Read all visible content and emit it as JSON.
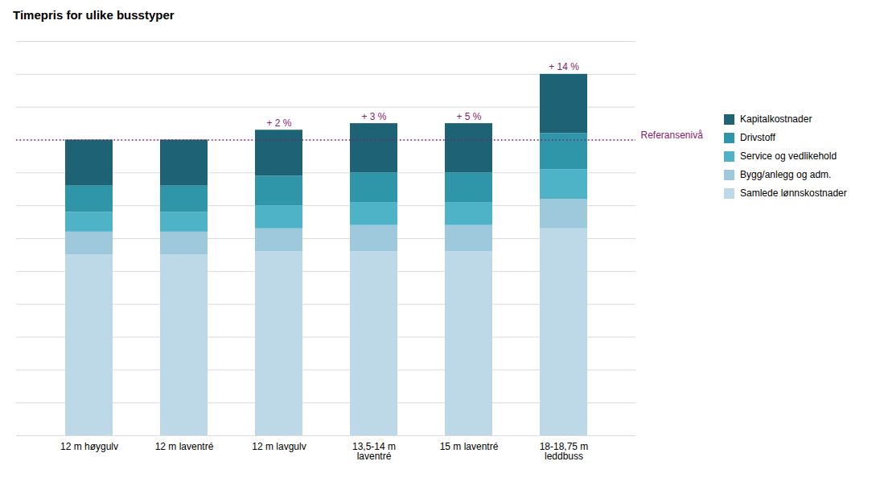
{
  "chart_data": {
    "type": "bar",
    "stacked": true,
    "title": "Timepris for ulike busstyper",
    "categories": [
      "12 m høygulv",
      "12 m laventré",
      "12 m lavgulv",
      "13,5-14 m\nlaventré",
      "15 m laventré",
      "18-18,75 m\nleddbuss"
    ],
    "series": [
      {
        "name": "Samlede lønnskostnader",
        "color": "#bdd9e8",
        "values": [
          55,
          55,
          56,
          56,
          56,
          63
        ]
      },
      {
        "name": "Bygg/anlegg og adm.",
        "color": "#9ec8db",
        "values": [
          7,
          7,
          7,
          8,
          8,
          9
        ]
      },
      {
        "name": "Service og vedlikehold",
        "color": "#4fb3c8",
        "values": [
          6,
          6,
          7,
          7,
          7,
          9
        ]
      },
      {
        "name": "Drivstoff",
        "color": "#2e96a8",
        "values": [
          8,
          8,
          9,
          9,
          9,
          11
        ]
      },
      {
        "name": "Kapitalkostnader",
        "color": "#1d6375",
        "values": [
          14,
          14,
          14,
          15,
          15,
          18
        ]
      }
    ],
    "ylim": [
      0,
      120
    ],
    "yticks": [
      0,
      10,
      20,
      30,
      40,
      50,
      60,
      70,
      80,
      90,
      100,
      110,
      120
    ],
    "grid": true,
    "tick_labels": "x",
    "legend": "right",
    "reference_line": {
      "value": 90,
      "label": "Referansenivå",
      "color": "#8b1a6b",
      "line_style": "dotted"
    },
    "annotations": [
      {
        "category": "12 m lavgulv",
        "text": "+ 2 %",
        "color": "#8b1a6b"
      },
      {
        "category": "13,5-14 m\nlaventré",
        "text": "+ 3 %",
        "color": "#8b1a6b"
      },
      {
        "category": "15 m laventré",
        "text": "+ 5 %",
        "color": "#8b1a6b"
      },
      {
        "category": "18-18,75 m\nleddbuss",
        "text": "+ 14 %",
        "color": "#8b1a6b"
      }
    ]
  }
}
